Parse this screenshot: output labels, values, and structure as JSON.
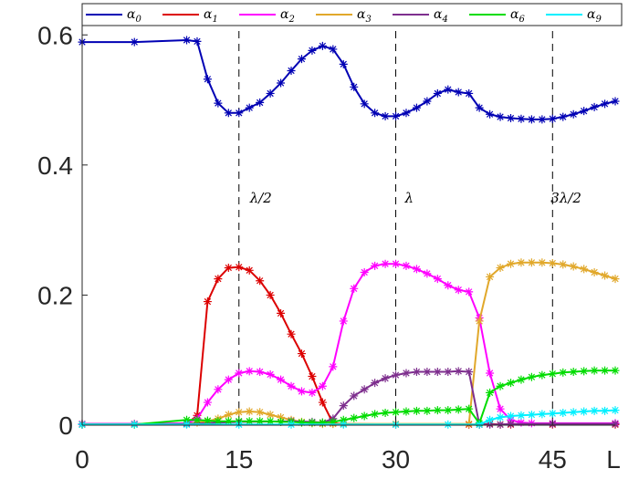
{
  "chart_data": {
    "type": "line",
    "xlabel": "L",
    "ylabel": "",
    "xlim": [
      0,
      51
    ],
    "ylim": [
      0,
      0.62
    ],
    "x_ticks": [
      "0",
      "15",
      "30",
      "45"
    ],
    "y_ticks": [
      "0",
      "0.2",
      "0.4",
      "0.6"
    ],
    "vlines": [
      {
        "x": 15,
        "label": "λ/2"
      },
      {
        "x": 30,
        "label": "λ"
      },
      {
        "x": 45,
        "label": "3λ/2"
      }
    ],
    "legend_position": "top",
    "series": [
      {
        "name": "α0",
        "symbol": "α",
        "sub": "0",
        "color": "#0000b4",
        "points": [
          [
            0,
            0.589
          ],
          [
            5,
            0.589
          ],
          [
            10,
            0.592
          ],
          [
            11,
            0.59
          ],
          [
            12,
            0.532
          ],
          [
            13,
            0.495
          ],
          [
            14,
            0.48
          ],
          [
            15,
            0.48
          ],
          [
            16,
            0.488
          ],
          [
            17,
            0.496
          ],
          [
            18,
            0.51
          ],
          [
            19,
            0.526
          ],
          [
            20,
            0.545
          ],
          [
            21,
            0.563
          ],
          [
            22,
            0.576
          ],
          [
            23,
            0.583
          ],
          [
            24,
            0.578
          ],
          [
            25,
            0.555
          ],
          [
            26,
            0.52
          ],
          [
            27,
            0.494
          ],
          [
            28,
            0.48
          ],
          [
            29,
            0.475
          ],
          [
            30,
            0.475
          ],
          [
            31,
            0.48
          ],
          [
            32,
            0.488
          ],
          [
            33,
            0.498
          ],
          [
            34,
            0.51
          ],
          [
            35,
            0.516
          ],
          [
            36,
            0.512
          ],
          [
            37,
            0.51
          ],
          [
            38,
            0.488
          ],
          [
            39,
            0.478
          ],
          [
            40,
            0.474
          ],
          [
            41,
            0.472
          ],
          [
            42,
            0.471
          ],
          [
            43,
            0.47
          ],
          [
            44,
            0.47
          ],
          [
            45,
            0.471
          ],
          [
            46,
            0.474
          ],
          [
            47,
            0.478
          ],
          [
            48,
            0.483
          ],
          [
            49,
            0.489
          ],
          [
            50,
            0.494
          ],
          [
            51,
            0.498
          ]
        ]
      },
      {
        "name": "α1",
        "symbol": "α",
        "sub": "1",
        "color": "#dc0000",
        "points": [
          [
            0,
            0.002
          ],
          [
            5,
            0.002
          ],
          [
            10,
            0.002
          ],
          [
            11,
            0.015
          ],
          [
            12,
            0.19
          ],
          [
            13,
            0.225
          ],
          [
            14,
            0.242
          ],
          [
            15,
            0.243
          ],
          [
            16,
            0.238
          ],
          [
            17,
            0.222
          ],
          [
            18,
            0.2
          ],
          [
            19,
            0.172
          ],
          [
            20,
            0.14
          ],
          [
            21,
            0.11
          ],
          [
            22,
            0.075
          ],
          [
            23,
            0.035
          ],
          [
            24,
            0.003
          ],
          [
            25,
            0.002
          ],
          [
            30,
            0.001
          ],
          [
            37,
            0.001
          ],
          [
            38,
            0.001
          ],
          [
            39,
            0.002
          ],
          [
            40,
            0.001
          ],
          [
            41,
            0.001
          ],
          [
            45,
            0.001
          ],
          [
            51,
            0.001
          ]
        ]
      },
      {
        "name": "α2",
        "symbol": "α",
        "sub": "2",
        "color": "#ff00ff",
        "points": [
          [
            0,
            0.002
          ],
          [
            5,
            0.002
          ],
          [
            10,
            0.003
          ],
          [
            11,
            0.01
          ],
          [
            12,
            0.035
          ],
          [
            13,
            0.055
          ],
          [
            14,
            0.07
          ],
          [
            15,
            0.08
          ],
          [
            16,
            0.083
          ],
          [
            17,
            0.082
          ],
          [
            18,
            0.078
          ],
          [
            19,
            0.07
          ],
          [
            20,
            0.06
          ],
          [
            21,
            0.052
          ],
          [
            22,
            0.05
          ],
          [
            23,
            0.06
          ],
          [
            24,
            0.09
          ],
          [
            25,
            0.16
          ],
          [
            26,
            0.21
          ],
          [
            27,
            0.235
          ],
          [
            28,
            0.245
          ],
          [
            29,
            0.248
          ],
          [
            30,
            0.248
          ],
          [
            31,
            0.245
          ],
          [
            32,
            0.24
          ],
          [
            33,
            0.233
          ],
          [
            34,
            0.225
          ],
          [
            35,
            0.215
          ],
          [
            36,
            0.208
          ],
          [
            37,
            0.205
          ],
          [
            38,
            0.165
          ],
          [
            39,
            0.08
          ],
          [
            40,
            0.025
          ],
          [
            41,
            0.008
          ],
          [
            42,
            0.004
          ],
          [
            43,
            0.003
          ],
          [
            45,
            0.003
          ],
          [
            51,
            0.003
          ]
        ]
      },
      {
        "name": "α3",
        "symbol": "α",
        "sub": "3",
        "color": "#e1a82b",
        "points": [
          [
            0,
            0.001
          ],
          [
            5,
            0.001
          ],
          [
            10,
            0.002
          ],
          [
            11,
            0.004
          ],
          [
            12,
            0.006
          ],
          [
            13,
            0.01
          ],
          [
            14,
            0.016
          ],
          [
            15,
            0.02
          ],
          [
            16,
            0.021
          ],
          [
            17,
            0.02
          ],
          [
            18,
            0.016
          ],
          [
            19,
            0.012
          ],
          [
            20,
            0.008
          ],
          [
            21,
            0.005
          ],
          [
            22,
            0.003
          ],
          [
            23,
            0.002
          ],
          [
            24,
            0.002
          ],
          [
            25,
            0.002
          ],
          [
            30,
            0.002
          ],
          [
            37,
            0.002
          ],
          [
            38,
            0.16
          ],
          [
            39,
            0.228
          ],
          [
            40,
            0.242
          ],
          [
            41,
            0.248
          ],
          [
            42,
            0.25
          ],
          [
            43,
            0.25
          ],
          [
            44,
            0.25
          ],
          [
            45,
            0.249
          ],
          [
            46,
            0.247
          ],
          [
            47,
            0.244
          ],
          [
            48,
            0.24
          ],
          [
            49,
            0.235
          ],
          [
            50,
            0.23
          ],
          [
            51,
            0.225
          ]
        ]
      },
      {
        "name": "α4",
        "symbol": "α",
        "sub": "4",
        "color": "#7e2f8e",
        "points": [
          [
            0,
            0.001
          ],
          [
            10,
            0.002
          ],
          [
            15,
            0.005
          ],
          [
            20,
            0.006
          ],
          [
            22,
            0.005
          ],
          [
            23,
            0.004
          ],
          [
            24,
            0.01
          ],
          [
            25,
            0.03
          ],
          [
            26,
            0.045
          ],
          [
            27,
            0.055
          ],
          [
            28,
            0.065
          ],
          [
            29,
            0.072
          ],
          [
            30,
            0.077
          ],
          [
            31,
            0.08
          ],
          [
            32,
            0.082
          ],
          [
            33,
            0.082
          ],
          [
            34,
            0.082
          ],
          [
            35,
            0.082
          ],
          [
            36,
            0.083
          ],
          [
            37,
            0.082
          ],
          [
            38,
            0.001
          ],
          [
            39,
            0.001
          ],
          [
            40,
            0.001
          ],
          [
            41,
            0.002
          ],
          [
            45,
            0.002
          ],
          [
            51,
            0.002
          ]
        ]
      },
      {
        "name": "α6",
        "symbol": "α",
        "sub": "6",
        "color": "#00dc00",
        "points": [
          [
            0,
            0.001
          ],
          [
            5,
            0.001
          ],
          [
            10,
            0.008
          ],
          [
            11,
            0.008
          ],
          [
            12,
            0.007
          ],
          [
            13,
            0.006
          ],
          [
            14,
            0.006
          ],
          [
            15,
            0.006
          ],
          [
            16,
            0.006
          ],
          [
            17,
            0.006
          ],
          [
            18,
            0.006
          ],
          [
            19,
            0.005
          ],
          [
            20,
            0.005
          ],
          [
            21,
            0.004
          ],
          [
            22,
            0.004
          ],
          [
            23,
            0.004
          ],
          [
            24,
            0.005
          ],
          [
            25,
            0.008
          ],
          [
            26,
            0.011
          ],
          [
            27,
            0.014
          ],
          [
            28,
            0.017
          ],
          [
            29,
            0.019
          ],
          [
            30,
            0.02
          ],
          [
            31,
            0.021
          ],
          [
            32,
            0.022
          ],
          [
            33,
            0.022
          ],
          [
            34,
            0.023
          ],
          [
            35,
            0.023
          ],
          [
            36,
            0.024
          ],
          [
            37,
            0.025
          ],
          [
            38,
            0.003
          ],
          [
            39,
            0.05
          ],
          [
            40,
            0.06
          ],
          [
            41,
            0.065
          ],
          [
            42,
            0.07
          ],
          [
            43,
            0.074
          ],
          [
            44,
            0.077
          ],
          [
            45,
            0.079
          ],
          [
            46,
            0.081
          ],
          [
            47,
            0.082
          ],
          [
            48,
            0.083
          ],
          [
            49,
            0.084
          ],
          [
            50,
            0.084
          ],
          [
            51,
            0.084
          ]
        ]
      },
      {
        "name": "α9",
        "symbol": "α",
        "sub": "9",
        "color": "#00f0ff",
        "points": [
          [
            0,
            0.001
          ],
          [
            5,
            0.001
          ],
          [
            10,
            0.001
          ],
          [
            15,
            0.001
          ],
          [
            20,
            0.001
          ],
          [
            25,
            0.001
          ],
          [
            30,
            0.001
          ],
          [
            35,
            0.001
          ],
          [
            38,
            0.001
          ],
          [
            39,
            0.008
          ],
          [
            40,
            0.012
          ],
          [
            41,
            0.014
          ],
          [
            42,
            0.015
          ],
          [
            43,
            0.016
          ],
          [
            44,
            0.017
          ],
          [
            45,
            0.018
          ],
          [
            46,
            0.019
          ],
          [
            47,
            0.02
          ],
          [
            48,
            0.021
          ],
          [
            49,
            0.022
          ],
          [
            50,
            0.022
          ],
          [
            51,
            0.023
          ]
        ]
      }
    ]
  }
}
